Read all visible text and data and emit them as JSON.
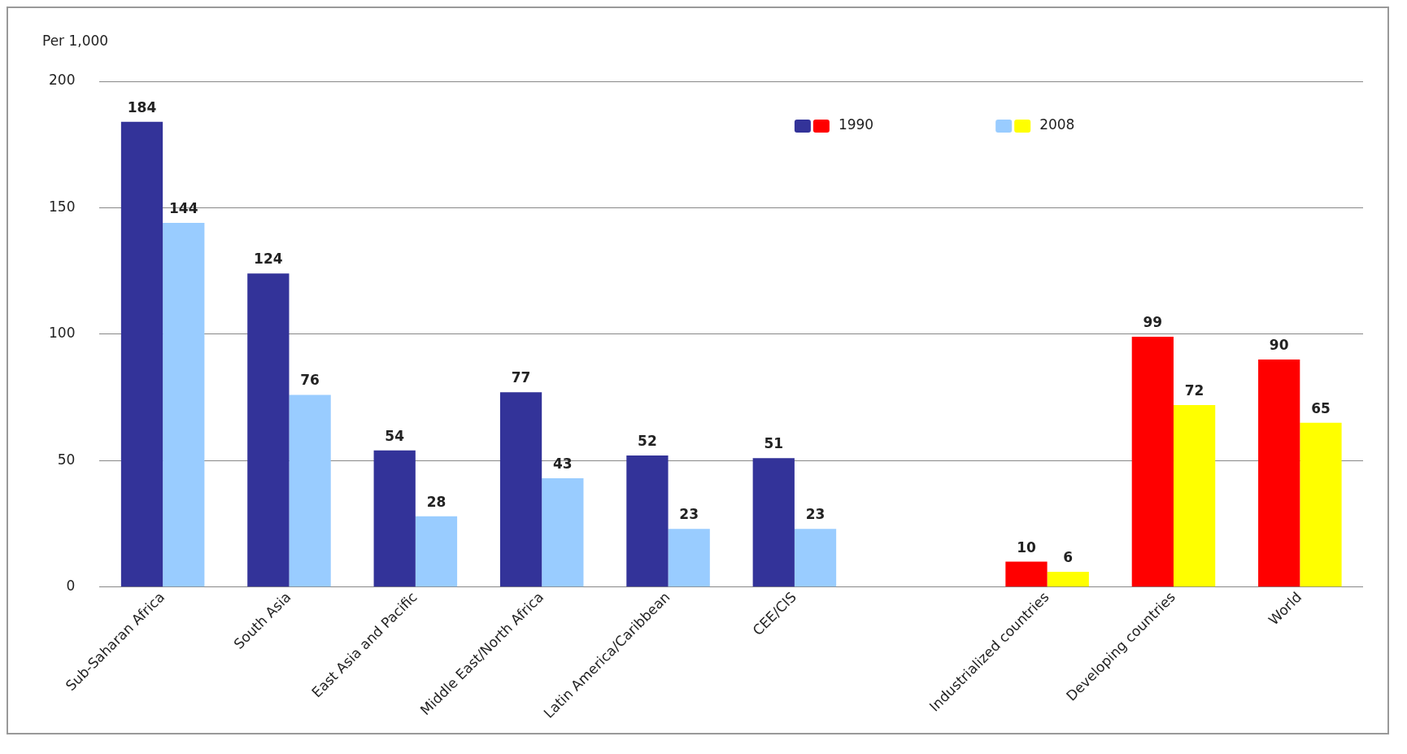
{
  "chart_data": {
    "type": "bar",
    "ylabel": "Per 1,000",
    "categories": [
      "Sub-Saharan Africa",
      "South Asia",
      "East Asia and Pacific",
      "Middle East/North Africa",
      "Latin America/Caribbean",
      "CEE/CIS",
      null,
      "Industrialized countries",
      "Developing countries",
      "World"
    ],
    "series": [
      {
        "name": "1990",
        "colors": [
          "#333399",
          "#333399",
          "#333399",
          "#333399",
          "#333399",
          "#333399",
          "#333399",
          "#ff0000",
          "#ff0000",
          "#ff0000"
        ],
        "values": [
          184,
          124,
          54,
          77,
          52,
          51,
          null,
          10,
          99,
          90
        ]
      },
      {
        "name": "2008",
        "colors": [
          "#99ccff",
          "#99ccff",
          "#99ccff",
          "#99ccff",
          "#99ccff",
          "#99ccff",
          "#99ccff",
          "#ffff00",
          "#ffff00",
          "#ffff00"
        ],
        "values": [
          144,
          76,
          28,
          43,
          23,
          23,
          null,
          6,
          72,
          65
        ]
      }
    ],
    "ylim": [
      0,
      200
    ],
    "yticks": [
      0,
      50,
      100,
      150,
      200
    ],
    "grid": "y",
    "legend": "top right",
    "data_labels": true
  }
}
